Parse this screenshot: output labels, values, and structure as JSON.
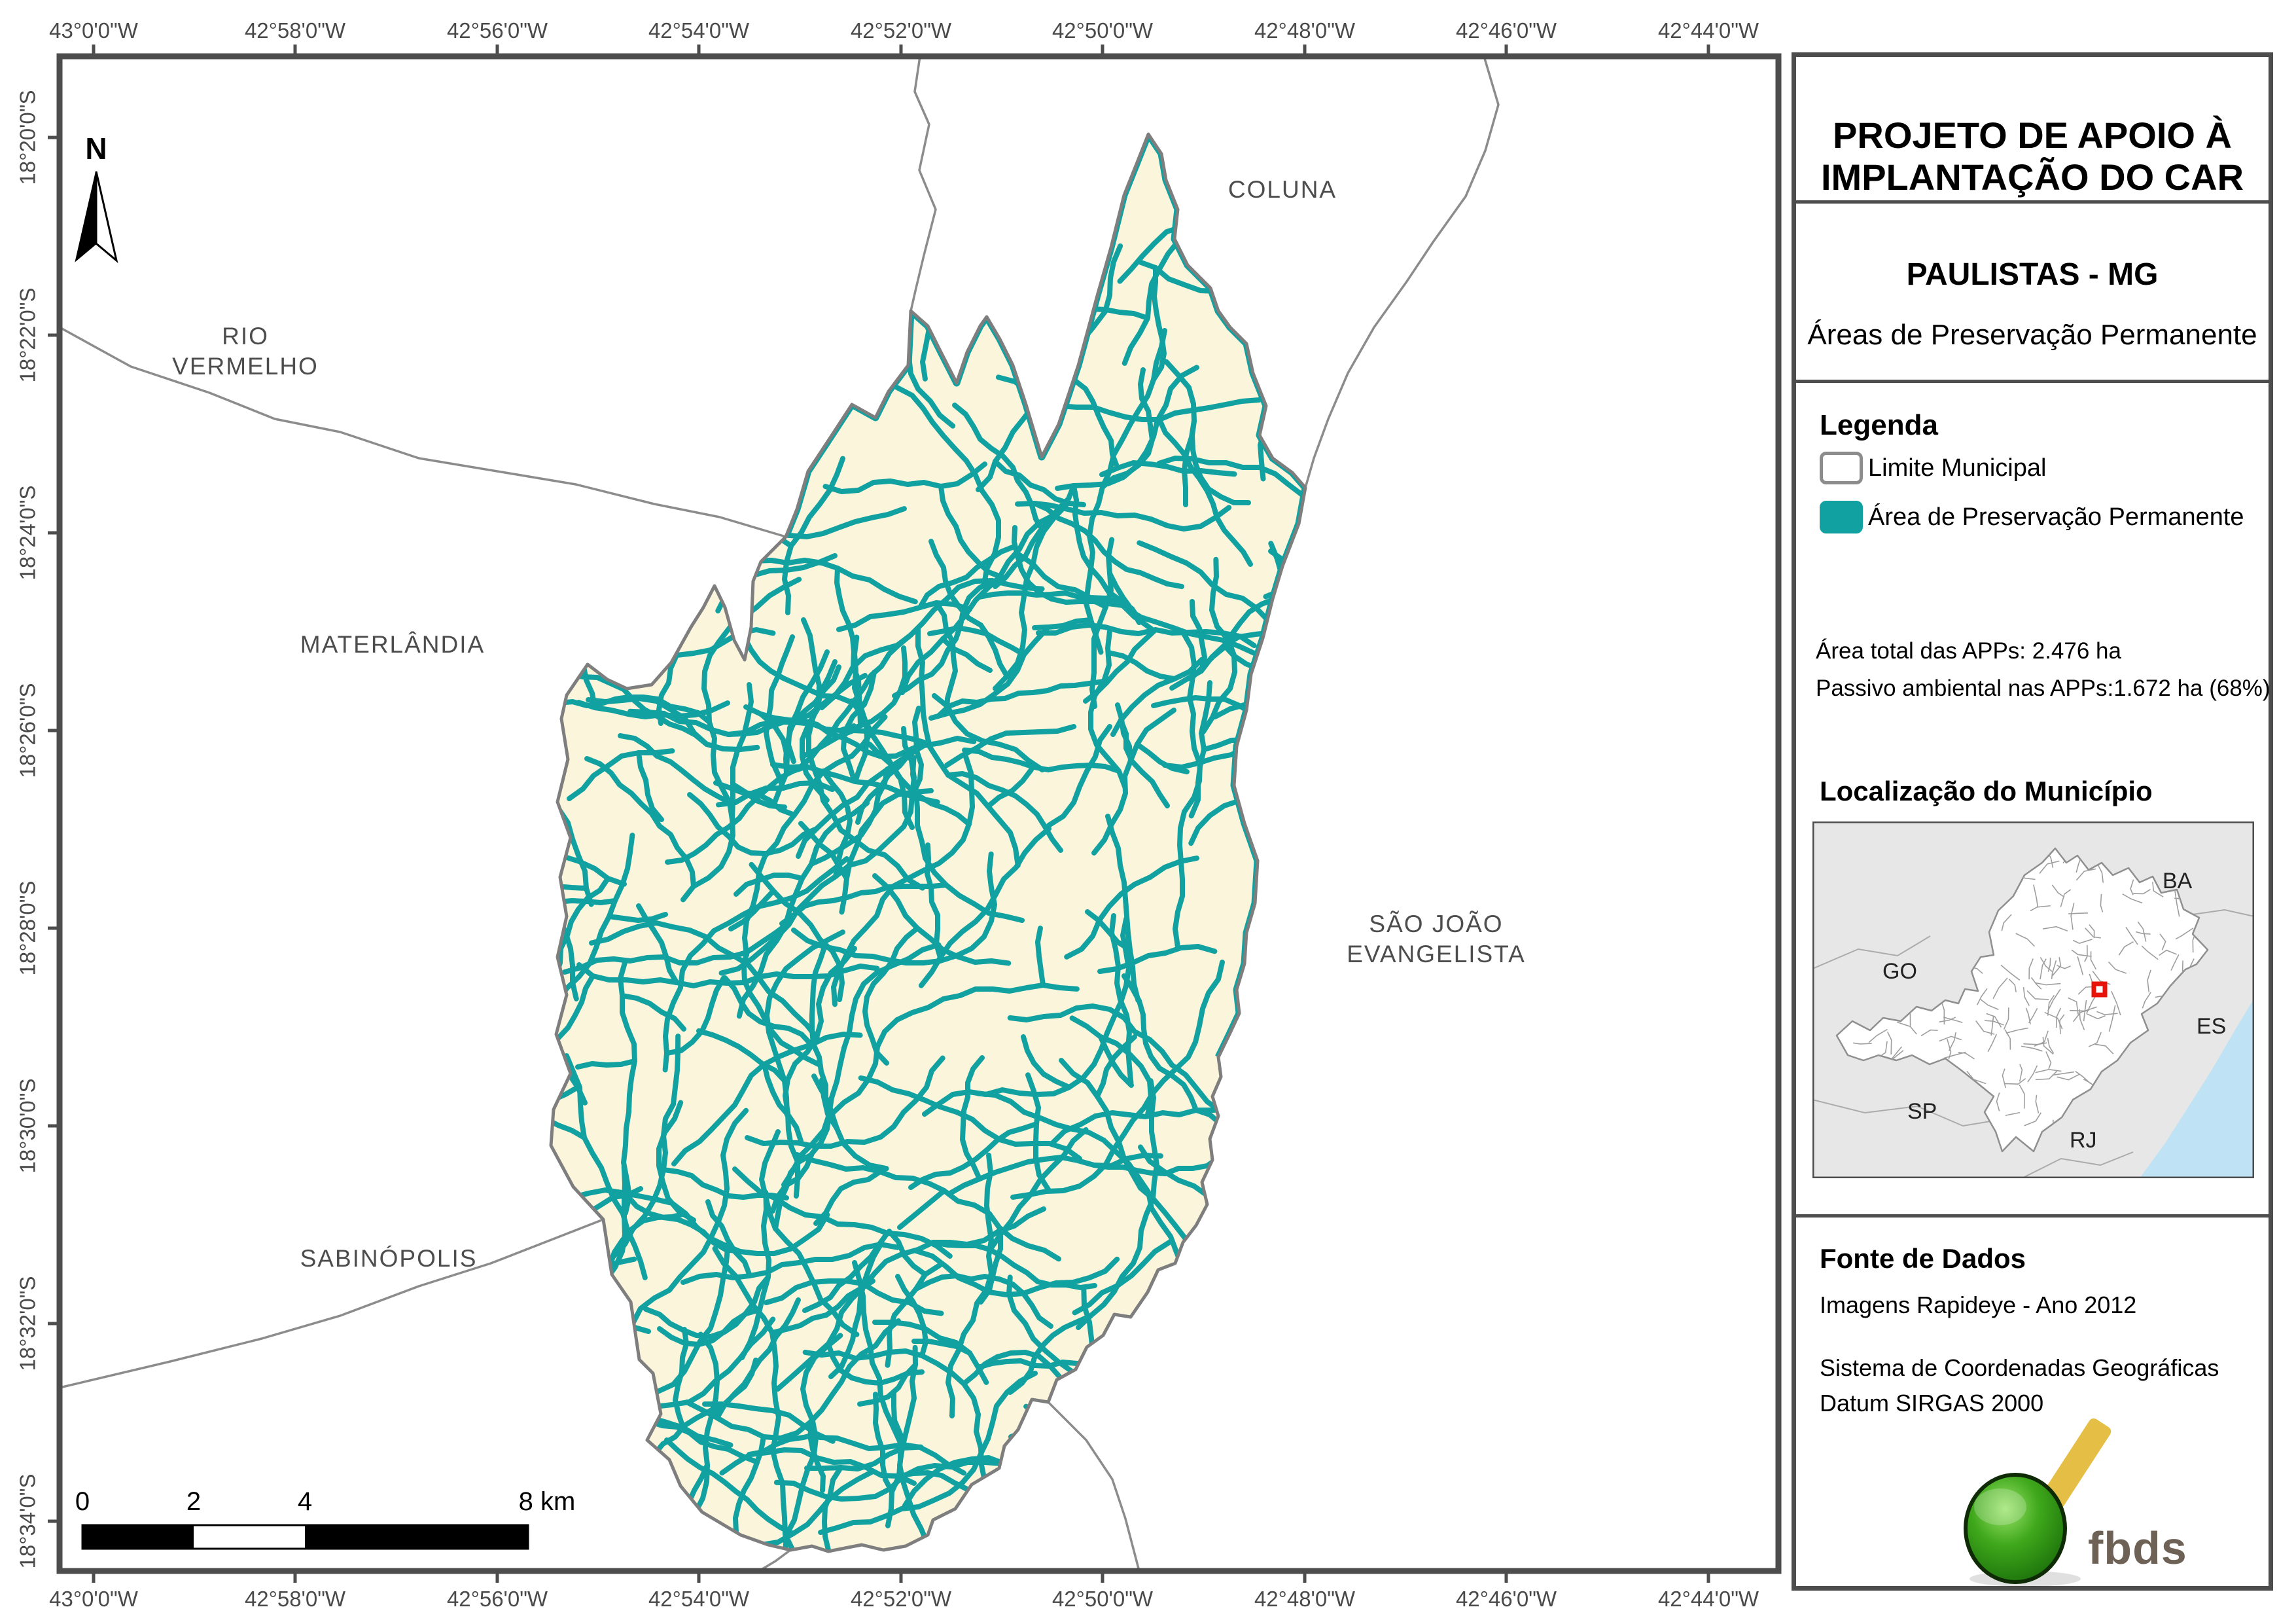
{
  "sidebar": {
    "title_line1": "PROJETO DE APOIO À",
    "title_line2": "IMPLANTAÇÃO DO CAR",
    "municipality": "PAULISTAS - MG",
    "subtitle": "Áreas de Preservação Permanente",
    "legend": {
      "heading": "Legenda",
      "items": [
        {
          "label": "Limite Municipal"
        },
        {
          "label": "Área de Preservação Permanente"
        }
      ]
    },
    "stats": {
      "total": "Área total das APPs: 2.476 ha",
      "passivo": "Passivo ambiental nas APPs:1.672 ha (68%)"
    },
    "location": {
      "heading": "Localização do Município",
      "labels": {
        "go": "GO",
        "ba": "BA",
        "es": "ES",
        "sp": "SP",
        "rj": "RJ"
      }
    },
    "source": {
      "heading": "Fonte de Dados",
      "line1": "Imagens Rapideye - Ano 2012",
      "line2": "Sistema de Coordenadas Geográficas",
      "line3": "Datum SIRGAS 2000"
    },
    "logo_text": "fbds"
  },
  "map": {
    "north": "N",
    "lon_labels": [
      "43°0'0\"W",
      "42°58'0\"W",
      "42°56'0\"W",
      "42°54'0\"W",
      "42°52'0\"W",
      "42°50'0\"W",
      "42°48'0\"W",
      "42°46'0\"W",
      "42°44'0\"W"
    ],
    "lat_labels": [
      "18°20'0\"S",
      "18°22'0\"S",
      "18°24'0\"S",
      "18°26'0\"S",
      "18°28'0\"S",
      "18°30'0\"S",
      "18°32'0\"S",
      "18°34'0\"S"
    ],
    "labels": {
      "rio_vermelho": "RIO\nVERMELHO",
      "coluna": "COLUNA",
      "materlandia": "MATERLÂNDIA",
      "sao_joao": "SÃO JOÃO\nEVANGELISTA",
      "sabinopolis": "SABINÓPOLIS"
    },
    "scale": {
      "t0": "0",
      "t2": "2",
      "t4": "4",
      "t8": "8 km"
    }
  },
  "colors": {
    "app_teal": "#12A1A1",
    "muni_fill": "#FBF5DC",
    "muni_border": "#7E7E7E",
    "frame_gray": "#4D4D4D",
    "boundary_gray": "#8C8C8C",
    "label_gray": "#4A4A4A",
    "inset_bg": "#E7E7E7",
    "inset_line": "#9E9E9E",
    "ocean_blue": "#BFE2F4",
    "marker_red": "#E81309",
    "logo_green": "#2F9E14",
    "logo_yellow": "#E5BE45",
    "logo_text_color": "#6E6257"
  }
}
